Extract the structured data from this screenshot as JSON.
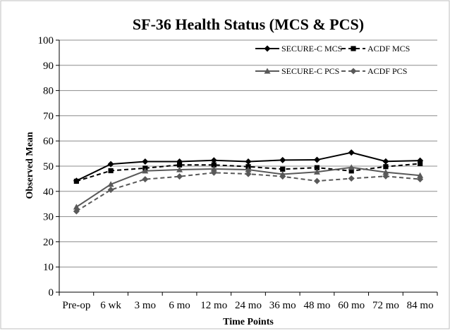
{
  "chart_data": {
    "type": "line",
    "title": "SF-36 Health Status (MCS & PCS)",
    "xlabel": "Time Points",
    "ylabel": "Observed Mean",
    "ylim": [
      0,
      100
    ],
    "yticks": [
      0,
      10,
      20,
      30,
      40,
      50,
      60,
      70,
      80,
      90,
      100
    ],
    "grid": "horizontal",
    "legend_position": "top-right",
    "categories": [
      "Pre-op",
      "6 wk",
      "3 mo",
      "6 mo",
      "12 mo",
      "24 mo",
      "36 mo",
      "48 mo",
      "60 mo",
      "72 mo",
      "84 mo"
    ],
    "series": [
      {
        "name": "SECURE-C MCS",
        "values": [
          44.2,
          50.8,
          51.8,
          51.8,
          52.3,
          51.8,
          52.4,
          52.5,
          55.4,
          51.9,
          52.2
        ],
        "color": "#000000",
        "marker": "diamond",
        "dash": "solid"
      },
      {
        "name": "ACDF MCS",
        "values": [
          44.0,
          48.2,
          49.2,
          50.5,
          50.5,
          49.8,
          48.8,
          49.4,
          48.1,
          49.8,
          51.0
        ],
        "color": "#000000",
        "marker": "square",
        "dash": "dashed"
      },
      {
        "name": "SECURE-C PCS",
        "values": [
          33.8,
          42.8,
          48.1,
          48.6,
          48.9,
          48.6,
          46.8,
          47.7,
          49.5,
          47.6,
          46.3
        ],
        "color": "#595959",
        "marker": "triangle",
        "dash": "solid"
      },
      {
        "name": "ACDF PCS",
        "values": [
          32.1,
          40.6,
          44.8,
          45.9,
          47.4,
          46.9,
          45.9,
          44.1,
          45.1,
          46.0,
          44.8
        ],
        "color": "#595959",
        "marker": "diamond",
        "dash": "dashed"
      }
    ]
  }
}
